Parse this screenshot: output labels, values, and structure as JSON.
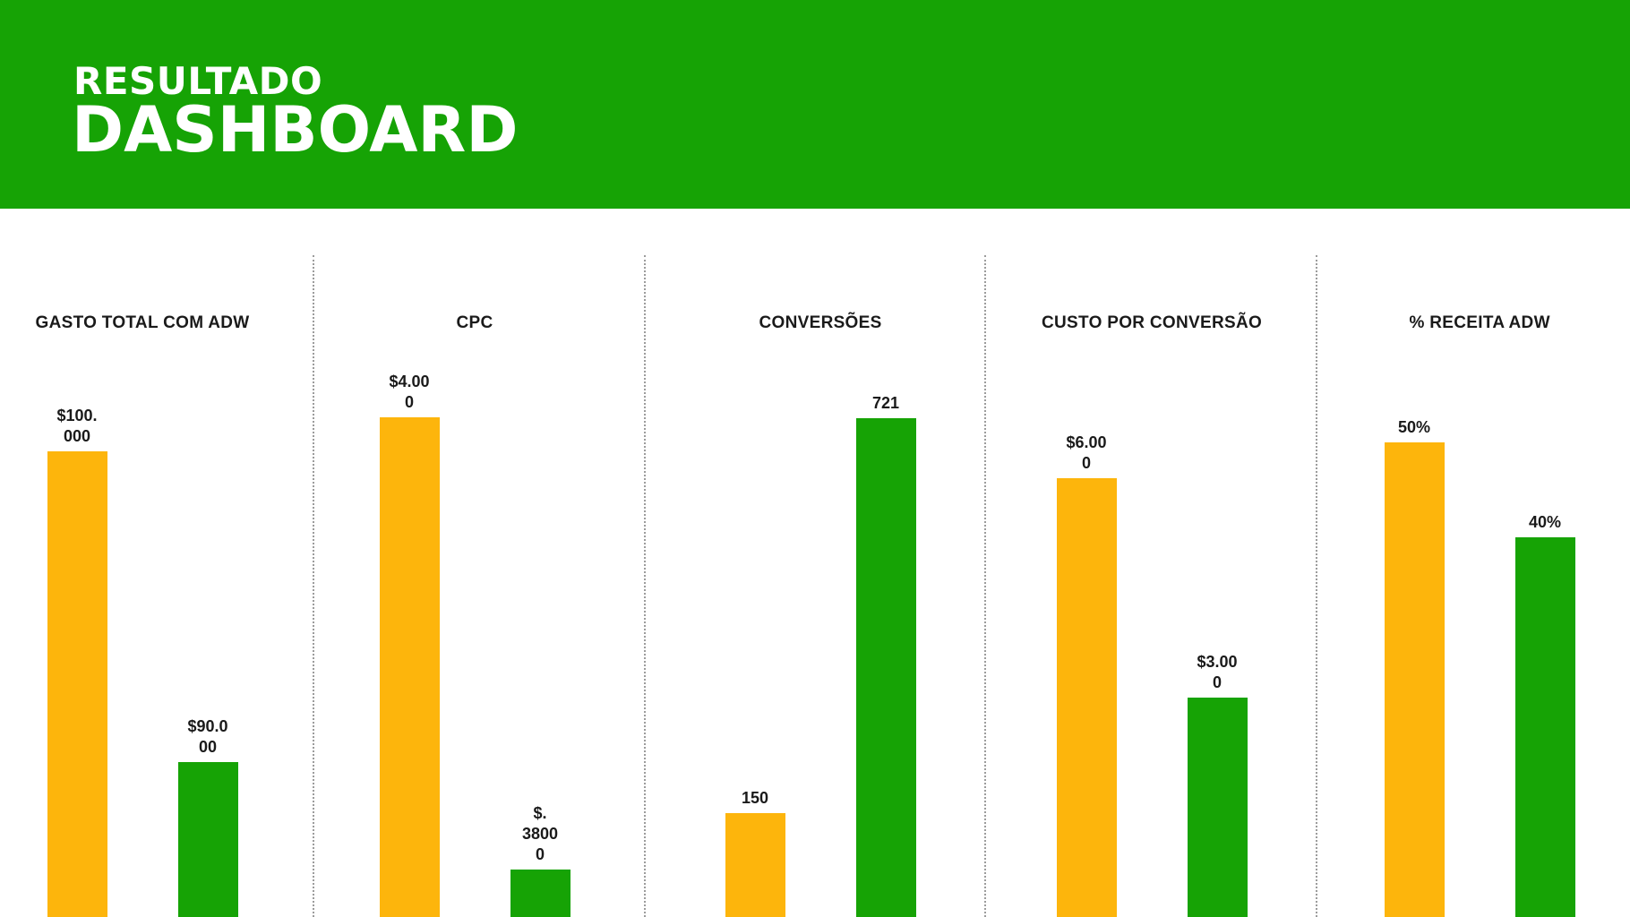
{
  "header": {
    "title_small": "RESULTADO",
    "title_large": "DASHBOARD"
  },
  "colors": {
    "header_bg": "#16a305",
    "series_a": "#fdb50c",
    "series_b": "#16a305"
  },
  "chart_data": [
    {
      "type": "bar",
      "title": "GASTO TOTAL COM ADW",
      "series": [
        {
          "values": [
            100000
          ],
          "label": "$100.000",
          "label_lines": [
            "$100.",
            "000"
          ]
        },
        {
          "values": [
            90000
          ],
          "label": "$90.000",
          "label_lines": [
            "$90.0",
            "00"
          ]
        }
      ],
      "ylim": [
        85000,
        101500
      ]
    },
    {
      "type": "bar",
      "title": "CPC",
      "series": [
        {
          "values": [
            4.0
          ],
          "label": "$4.000",
          "label_lines": [
            "$4.00",
            "0"
          ]
        },
        {
          "values": [
            0.38
          ],
          "label": "$.38000",
          "label_lines": [
            "$.",
            "3800",
            "0"
          ]
        }
      ],
      "ylim": [
        0,
        4.1
      ]
    },
    {
      "type": "bar",
      "title": "CONVERSÕES",
      "series": [
        {
          "values": [
            150
          ],
          "label": "150",
          "label_lines": [
            "150"
          ]
        },
        {
          "values": [
            721
          ],
          "label": "721",
          "label_lines": [
            "721"
          ]
        }
      ],
      "ylim": [
        0,
        740
      ]
    },
    {
      "type": "bar",
      "title": "CUSTO POR CONVERSÃO",
      "series": [
        {
          "values": [
            6.0
          ],
          "label": "$6.000",
          "label_lines": [
            "$6.00",
            "0"
          ]
        },
        {
          "values": [
            3.0
          ],
          "label": "$3.000",
          "label_lines": [
            "$3.00",
            "0"
          ]
        }
      ],
      "ylim": [
        0,
        7.0
      ]
    },
    {
      "type": "bar",
      "title": "% RECEITA ADW",
      "series": [
        {
          "values": [
            50
          ],
          "label": "50%",
          "label_lines": [
            "50%"
          ]
        },
        {
          "values": [
            40
          ],
          "label": "40%",
          "label_lines": [
            "40%"
          ]
        }
      ],
      "ylim": [
        0,
        54
      ]
    }
  ]
}
